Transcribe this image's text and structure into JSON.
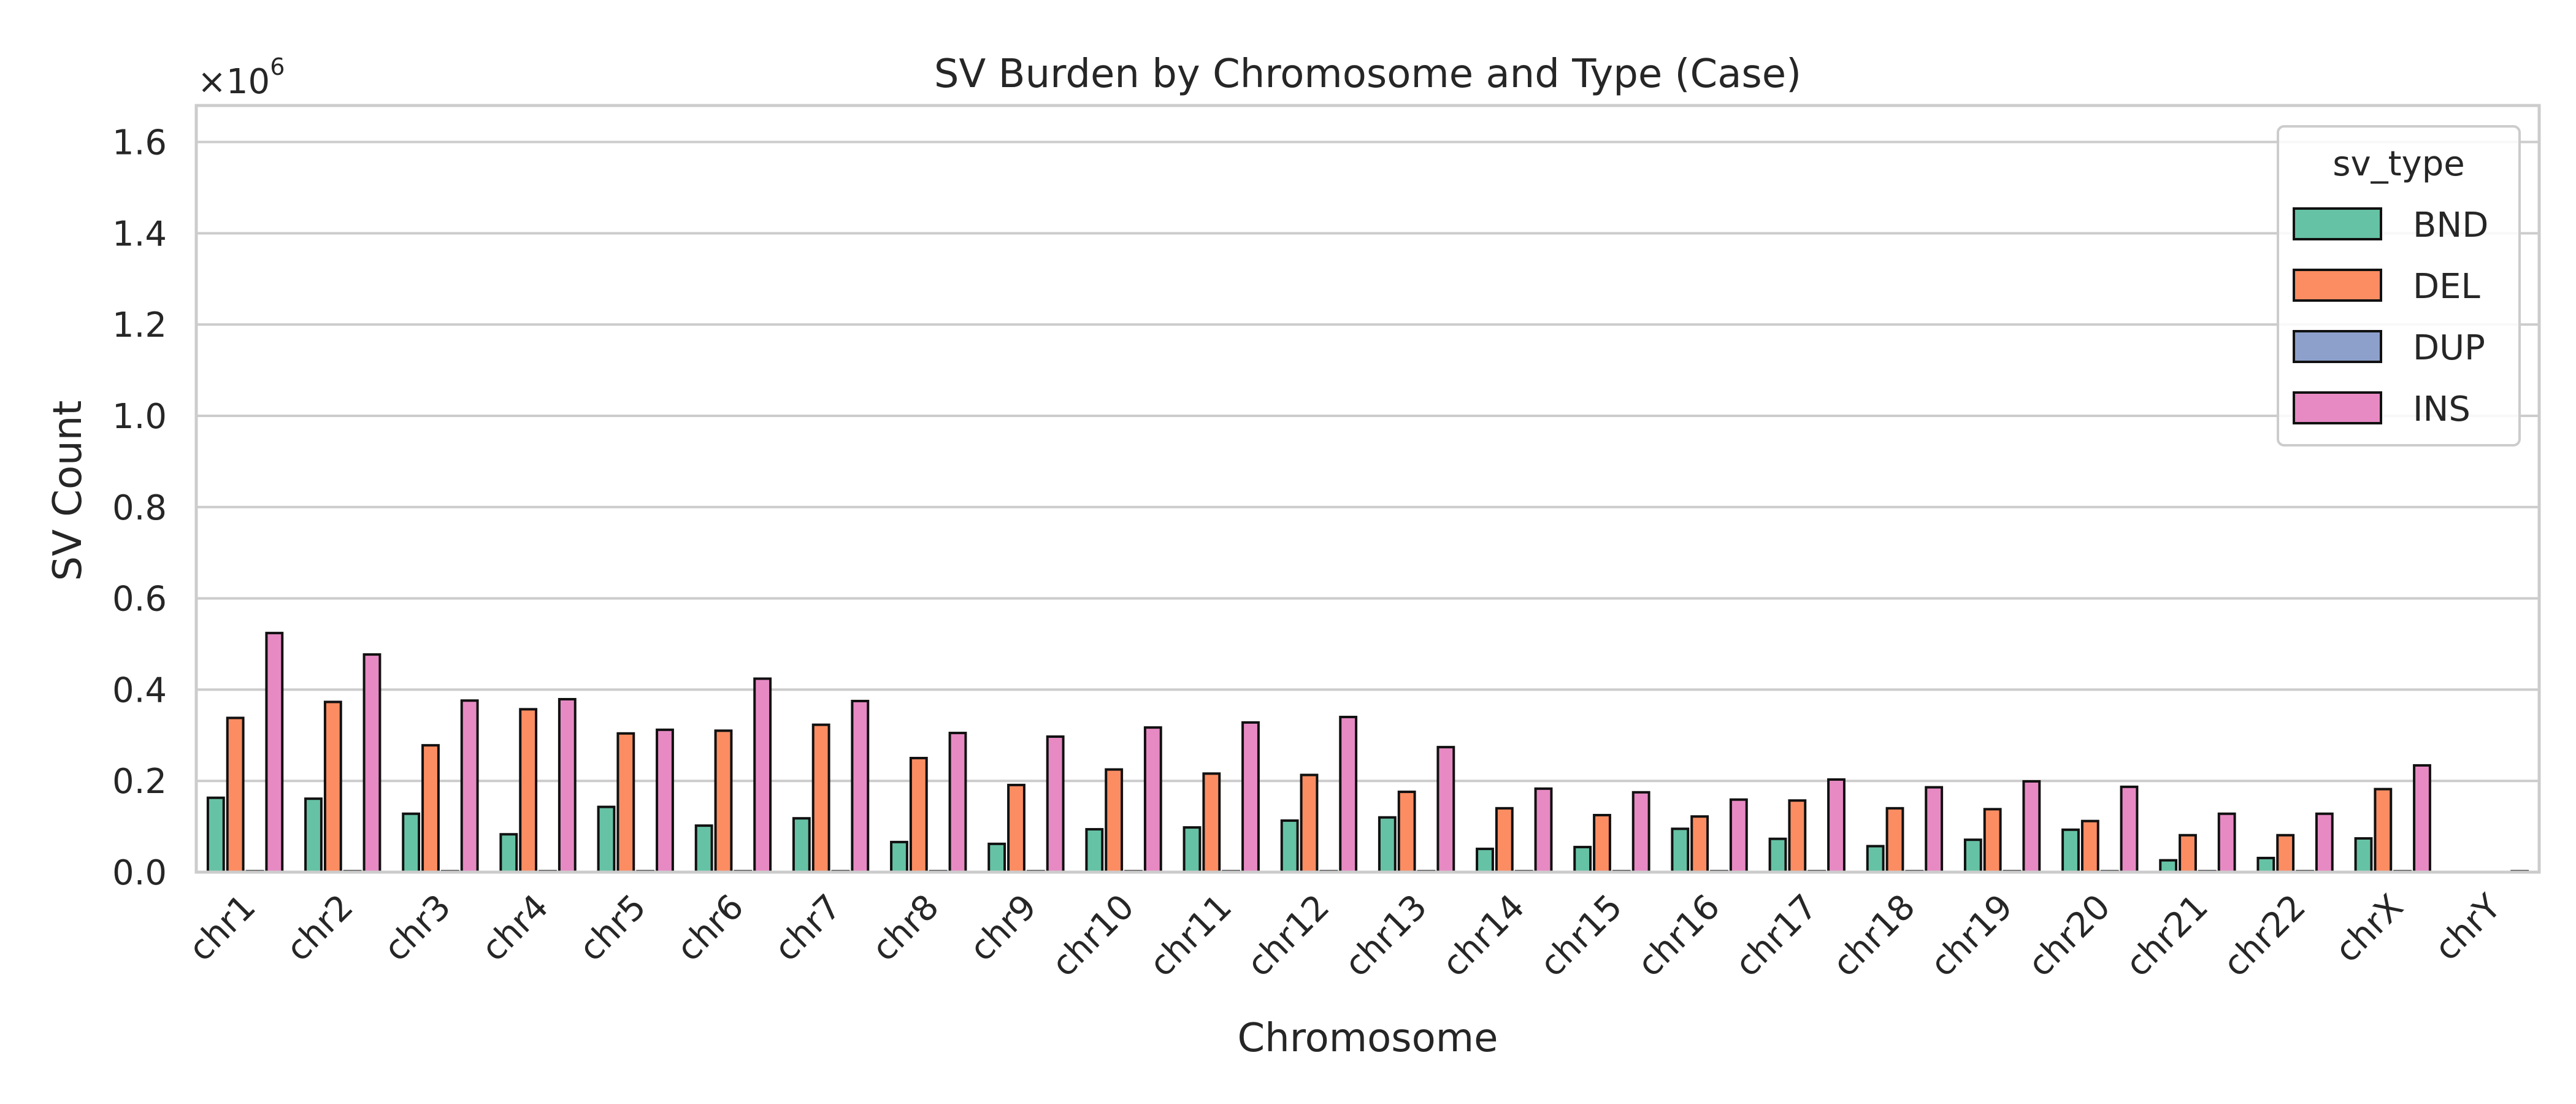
{
  "chart_data": {
    "type": "bar",
    "title": "SV Burden by Chromosome and Type (Case)",
    "xlabel": "Chromosome",
    "ylabel": "SV Count",
    "y_offset_text": "×10",
    "y_offset_exp": "6",
    "ylim": [
      0,
      1.68
    ],
    "yticks": [
      "0.0",
      "0.2",
      "0.4",
      "0.6",
      "0.8",
      "1.0",
      "1.2",
      "1.4",
      "1.6"
    ],
    "ytick_values": [
      0,
      0.2,
      0.4,
      0.6,
      0.8,
      1.0,
      1.2,
      1.4,
      1.6
    ],
    "grid": true,
    "legend": {
      "title": "sv_type",
      "placement": "top-right"
    },
    "categories": [
      "chr1",
      "chr2",
      "chr3",
      "chr4",
      "chr5",
      "chr6",
      "chr7",
      "chr8",
      "chr9",
      "chr10",
      "chr11",
      "chr12",
      "chr13",
      "chr14",
      "chr15",
      "chr16",
      "chr17",
      "chr18",
      "chr19",
      "chr20",
      "chr21",
      "chr22",
      "chrX",
      "chrY"
    ],
    "series": [
      {
        "name": "BND",
        "color": "#66c2a5",
        "values": [
          0.163,
          0.161,
          0.128,
          0.083,
          0.143,
          0.102,
          0.118,
          0.066,
          0.062,
          0.094,
          0.098,
          0.113,
          0.12,
          0.051,
          0.055,
          0.095,
          0.073,
          0.057,
          0.071,
          0.093,
          0.026,
          0.031,
          0.074,
          0.0005
        ]
      },
      {
        "name": "DEL",
        "color": "#fc8d62",
        "values": [
          0.338,
          0.373,
          0.278,
          0.357,
          0.304,
          0.31,
          0.323,
          0.25,
          0.191,
          0.225,
          0.216,
          0.213,
          0.176,
          0.14,
          0.125,
          0.122,
          0.157,
          0.14,
          0.138,
          0.112,
          0.081,
          0.081,
          0.182,
          0.0005
        ]
      },
      {
        "name": "DUP",
        "color": "#8da0cb",
        "values": [
          0.002,
          0.002,
          0.002,
          0.002,
          0.002,
          0.002,
          0.002,
          0.002,
          0.002,
          0.002,
          0.002,
          0.002,
          0.002,
          0.002,
          0.002,
          0.002,
          0.002,
          0.002,
          0.002,
          0.002,
          0.002,
          0.002,
          0.002,
          0.0003
        ]
      },
      {
        "name": "INS",
        "color": "#e78ac3",
        "values": [
          0.524,
          0.477,
          0.376,
          0.379,
          0.312,
          0.424,
          0.375,
          0.305,
          0.297,
          0.317,
          0.328,
          0.34,
          0.274,
          0.183,
          0.175,
          0.159,
          0.203,
          0.186,
          0.199,
          0.187,
          0.128,
          0.128,
          0.234,
          0.002
        ]
      }
    ]
  }
}
